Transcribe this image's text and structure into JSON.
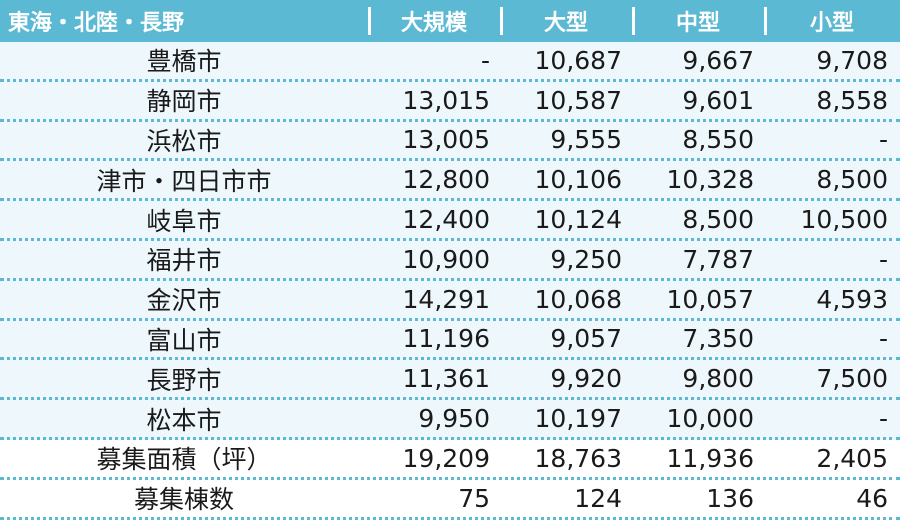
{
  "header": {
    "region": "東海・北陸・長野",
    "col_large_scale": "大規模",
    "col_large": "大型",
    "col_medium": "中型",
    "col_small": "小型"
  },
  "rows": [
    {
      "name": "豊橋市",
      "large_scale": "-",
      "large": "10,687",
      "medium": "9,667",
      "small": "9,708"
    },
    {
      "name": "静岡市",
      "large_scale": "13,015",
      "large": "10,587",
      "medium": "9,601",
      "small": "8,558"
    },
    {
      "name": "浜松市",
      "large_scale": "13,005",
      "large": "9,555",
      "medium": "8,550",
      "small": "-"
    },
    {
      "name": "津市・四日市市",
      "large_scale": "12,800",
      "large": "10,106",
      "medium": "10,328",
      "small": "8,500"
    },
    {
      "name": "岐阜市",
      "large_scale": "12,400",
      "large": "10,124",
      "medium": "8,500",
      "small": "10,500"
    },
    {
      "name": "福井市",
      "large_scale": "10,900",
      "large": "9,250",
      "medium": "7,787",
      "small": "-"
    },
    {
      "name": "金沢市",
      "large_scale": "14,291",
      "large": "10,068",
      "medium": "10,057",
      "small": "4,593"
    },
    {
      "name": "富山市",
      "large_scale": "11,196",
      "large": "9,057",
      "medium": "7,350",
      "small": "-"
    },
    {
      "name": "長野市",
      "large_scale": "11,361",
      "large": "9,920",
      "medium": "9,800",
      "small": "7,500"
    },
    {
      "name": "松本市",
      "large_scale": "9,950",
      "large": "10,197",
      "medium": "10,000",
      "small": "-"
    },
    {
      "name": "募集面積（坪）",
      "large_scale": "19,209",
      "large": "18,763",
      "medium": "11,936",
      "small": "2,405"
    },
    {
      "name": "募集棟数",
      "large_scale": "75",
      "large": "124",
      "medium": "136",
      "small": "46"
    }
  ],
  "colors": {
    "header_bg": "#5bb9d3",
    "row_tint": "#eef7fb",
    "divider": "#5bb9d3"
  }
}
